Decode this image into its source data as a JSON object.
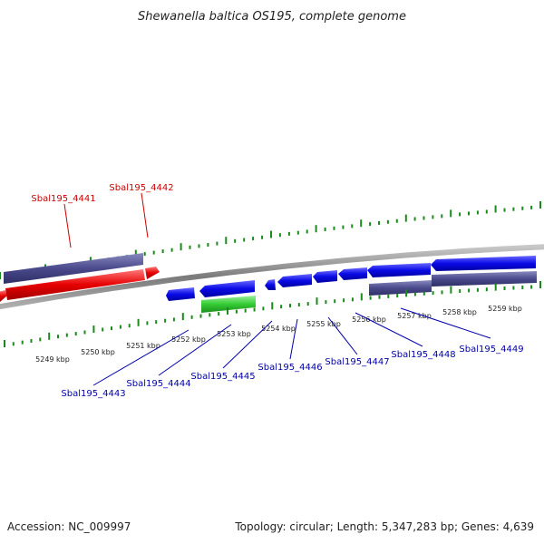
{
  "title": "Shewanella baltica OS195, complete genome",
  "footer": {
    "accession": "Accession: NC_009997",
    "summary": "Topology: circular; Length: 5,347,283 bp; Genes: 4,639"
  },
  "colors": {
    "forward_cds": "#e60000",
    "reverse_cds": "#0a0ae6",
    "forward_purple": "#4a4a8c",
    "reverse_purple": "#5a5a96",
    "rna": "#33cc33",
    "tick": "#1a8a1a",
    "backbone": "#8a8a8a",
    "label_forward": "#cc0000",
    "label_reverse": "#0000aa"
  },
  "axis": {
    "tick_labels": [
      "5249 kbp",
      "5250 kbp",
      "5251 kbp",
      "5252 kbp",
      "5253 kbp",
      "5254 kbp",
      "5255 kbp",
      "5256 kbp",
      "5257 kbp",
      "5258 kbp",
      "5259 kbp"
    ]
  },
  "gene_labels": {
    "forward": [
      "Sbal195_4441",
      "Sbal195_4442"
    ],
    "reverse": [
      "Sbal195_4443",
      "Sbal195_4444",
      "Sbal195_4445",
      "Sbal195_4446",
      "Sbal195_4447",
      "Sbal195_4448",
      "Sbal195_4449"
    ]
  }
}
